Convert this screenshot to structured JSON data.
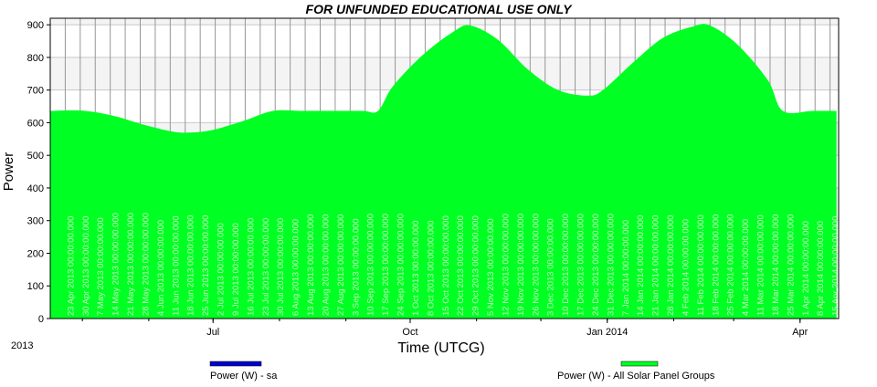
{
  "chart_data": {
    "type": "area",
    "title": "FOR UNFUNDED EDUCATIONAL USE ONLY",
    "xlabel": "Time (UTCG)",
    "ylabel": "Power",
    "year_label": "2013",
    "ylim": [
      0,
      920
    ],
    "yticks": [
      0,
      100,
      200,
      300,
      400,
      500,
      600,
      700,
      800,
      900
    ],
    "xlim": [
      "2013-04-16",
      "2014-04-19"
    ],
    "month_ticks": [
      {
        "date": "2013-07-01",
        "label": "Jul"
      },
      {
        "date": "2013-10-01",
        "label": "Oct"
      },
      {
        "date": "2014-01-01",
        "label": "Jan 2014"
      },
      {
        "date": "2014-04-01",
        "label": "Apr"
      }
    ],
    "grid": true,
    "legend_placement": "bottom",
    "series": [
      {
        "name": "Power (W) - sa",
        "color": "#0000cc",
        "values": []
      },
      {
        "name": "Power (W) - All Solar Panel Groups",
        "color": "#00ff22",
        "x": [
          "2013-04-16",
          "2013-05-01",
          "2013-05-15",
          "2013-05-29",
          "2013-06-12",
          "2013-06-21",
          "2013-07-01",
          "2013-07-15",
          "2013-07-29",
          "2013-08-12",
          "2013-08-26",
          "2013-09-09",
          "2013-09-16",
          "2013-09-23",
          "2013-10-07",
          "2013-10-21",
          "2013-10-29",
          "2013-11-11",
          "2013-11-25",
          "2013-12-09",
          "2013-12-23",
          "2013-12-30",
          "2014-01-13",
          "2014-01-27",
          "2014-02-10",
          "2014-02-18",
          "2014-03-03",
          "2014-03-17",
          "2014-03-24",
          "2014-04-07",
          "2014-04-18"
        ],
        "values": [
          636,
          637,
          622,
          595,
          573,
          570,
          578,
          605,
          636,
          636,
          636,
          636,
          636,
          712,
          808,
          878,
          898,
          854,
          763,
          700,
          683,
          700,
          784,
          860,
          895,
          898,
          838,
          730,
          636,
          636,
          636
        ]
      }
    ],
    "vlines": [
      "2013-04-23 00:00:00.000",
      "2013-04-30 00:00:00.000",
      "2013-05-07 00:00:00.000",
      "2013-05-14 00:00:00.000",
      "2013-05-21 00:00:00.000",
      "2013-05-28 00:00:00.000",
      "2013-06-04 00:00:00.000",
      "2013-06-11 00:00:00.000",
      "2013-06-18 00:00:00.000",
      "2013-06-25 00:00:00.000",
      "2013-07-02 00:00:00.000",
      "2013-07-09 00:00:00.000",
      "2013-07-16 00:00:00.000",
      "2013-07-23 00:00:00.000",
      "2013-07-30 00:00:00.000",
      "2013-08-06 00:00:00.000",
      "2013-08-13 00:00:00.000",
      "2013-08-20 00:00:00.000",
      "2013-08-27 00:00:00.000",
      "2013-09-03 00:00:00.000",
      "2013-09-10 00:00:00.000",
      "2013-09-17 00:00:00.000",
      "2013-09-24 00:00:00.000",
      "2013-10-01 00:00:00.000",
      "2013-10-08 00:00:00.000",
      "2013-10-15 00:00:00.000",
      "2013-10-22 00:00:00.000",
      "2013-10-29 00:00:00.000",
      "2013-11-05 00:00:00.000",
      "2013-11-12 00:00:00.000",
      "2013-11-19 00:00:00.000",
      "2013-11-26 00:00:00.000",
      "2013-12-03 00:00:00.000",
      "2013-12-10 00:00:00.000",
      "2013-12-17 00:00:00.000",
      "2013-12-24 00:00:00.000",
      "2013-12-31 00:00:00.000",
      "2014-01-07 00:00:00.000",
      "2014-01-14 00:00:00.000",
      "2014-01-21 00:00:00.000",
      "2014-01-28 00:00:00.000",
      "2014-02-04 00:00:00.000",
      "2014-02-11 00:00:00.000",
      "2014-02-18 00:00:00.000",
      "2014-02-25 00:00:00.000",
      "2014-03-04 00:00:00.000",
      "2014-03-11 00:00:00.000",
      "2014-03-18 00:00:00.000",
      "2014-03-25 00:00:00.000",
      "2014-04-01 00:00:00.000",
      "2014-04-08 00:00:00.000",
      "2014-04-15 00:00:00.000"
    ],
    "vline_labels": [
      "23 Apr 2013 00:00:00.000",
      "30 Apr 2013 00:00:00.000",
      "7 May 2013 00:00:00.000",
      "14 May 2013 00:00:00.000",
      "21 May 2013 00:00:00.000",
      "28 May 2013 00:00:00.000",
      "4 Jun 2013 00:00:00.000",
      "11 Jun 2013 00:00:00.000",
      "18 Jun 2013 00:00:00.000",
      "25 Jun 2013 00:00:00.000",
      "2 Jul 2013 00:00:00.000",
      "9 Jul 2013 00:00:00.000",
      "16 Jul 2013 00:00:00.000",
      "23 Jul 2013 00:00:00.000",
      "30 Jul 2013 00:00:00.000",
      "6 Aug 2013 00:00:00.000",
      "13 Aug 2013 00:00:00.000",
      "20 Aug 2013 00:00:00.000",
      "27 Aug 2013 00:00:00.000",
      "3 Sep 2013 00:00:00.000",
      "10 Sep 2013 00:00:00.000",
      "17 Sep 2013 00:00:00.000",
      "24 Sep 2013 00:00:00.000",
      "1 Oct 2013 00:00:00.000",
      "8 Oct 2013 00:00:00.000",
      "15 Oct 2013 00:00:00.000",
      "22 Oct 2013 00:00:00.000",
      "29 Oct 2013 00:00:00.000",
      "5 Nov 2013 00:00:00.000",
      "12 Nov 2013 00:00:00.000",
      "19 Nov 2013 00:00:00.000",
      "26 Nov 2013 00:00:00.000",
      "3 Dec 2013 00:00:00.000",
      "10 Dec 2013 00:00:00.000",
      "17 Dec 2013 00:00:00.000",
      "24 Dec 2013 00:00:00.000",
      "31 Dec 2013 00:00:00.000",
      "7 Jan 2014 00:00:00.000",
      "14 Jan 2014 00:00:00.000",
      "21 Jan 2014 00:00:00.000",
      "28 Jan 2014 00:00:00.000",
      "4 Feb 2014 00:00:00.000",
      "11 Feb 2014 00:00:00.000",
      "18 Feb 2014 00:00:00.000",
      "25 Feb 2014 00:00:00.000",
      "4 Mar 2014 00:00:00.000",
      "11 Mar 2014 00:00:00.000",
      "18 Mar 2014 00:00:00.000",
      "25 Mar 2014 00:00:00.000",
      "1 Apr 2014 00:00:00.000",
      "8 Apr 2014 00:00:00.000",
      "15 Apr 2014 00:00:00.000"
    ],
    "colors": {
      "band": "#f4f4f4",
      "grid": "#c8c8c8",
      "vline": "#969696",
      "label": "#bfffbf",
      "axis": "#000000"
    }
  }
}
